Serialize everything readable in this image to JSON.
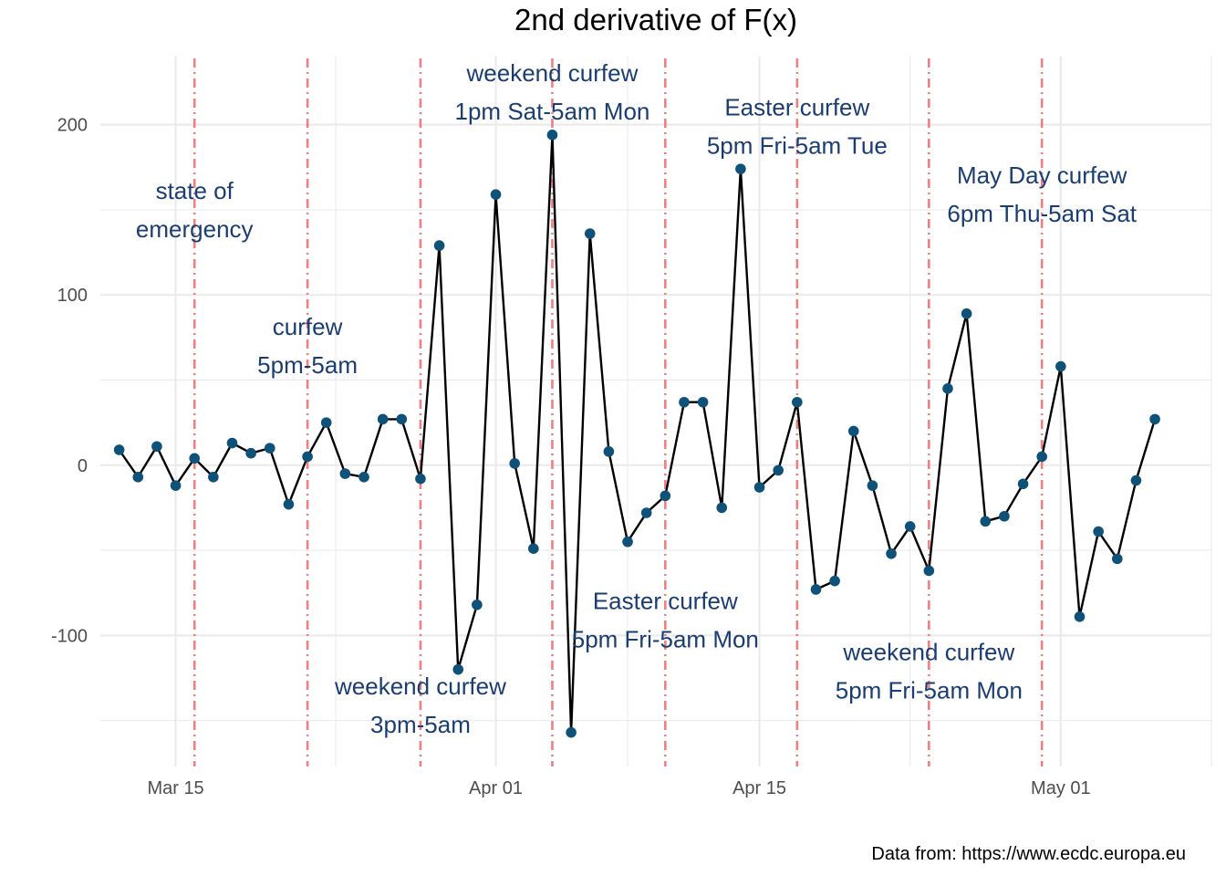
{
  "chart_data": {
    "type": "line",
    "title": "2nd derivative of F(x)",
    "xlabel": "",
    "ylabel": "",
    "caption": "Data from: https://www.ecdc.europa.eu",
    "x_range": [
      "2020-03-11",
      "2020-05-09"
    ],
    "ylim": [
      -177,
      240
    ],
    "grid": true,
    "x_ticks": [
      {
        "date": "2020-03-15",
        "label": "Mar 15"
      },
      {
        "date": "2020-04-01",
        "label": "Apr 01"
      },
      {
        "date": "2020-04-15",
        "label": "Apr 15"
      },
      {
        "date": "2020-05-01",
        "label": "May 01"
      }
    ],
    "y_ticks": [
      {
        "value": 200,
        "label": "200"
      },
      {
        "value": 100,
        "label": "100"
      },
      {
        "value": 0,
        "label": "0"
      },
      {
        "value": -100,
        "label": "-100"
      }
    ],
    "series": [
      {
        "line_color": "#000000",
        "point_color": "#0f5279",
        "points": [
          {
            "x": "2020-03-12",
            "y": 9
          },
          {
            "x": "2020-03-13",
            "y": -7
          },
          {
            "x": "2020-03-14",
            "y": 11
          },
          {
            "x": "2020-03-15",
            "y": -12
          },
          {
            "x": "2020-03-16",
            "y": 4
          },
          {
            "x": "2020-03-17",
            "y": -7
          },
          {
            "x": "2020-03-18",
            "y": 13
          },
          {
            "x": "2020-03-19",
            "y": 7
          },
          {
            "x": "2020-03-20",
            "y": 10
          },
          {
            "x": "2020-03-21",
            "y": -23
          },
          {
            "x": "2020-03-22",
            "y": 5
          },
          {
            "x": "2020-03-23",
            "y": 25
          },
          {
            "x": "2020-03-24",
            "y": -5
          },
          {
            "x": "2020-03-25",
            "y": -7
          },
          {
            "x": "2020-03-26",
            "y": 27
          },
          {
            "x": "2020-03-27",
            "y": 27
          },
          {
            "x": "2020-03-28",
            "y": -8
          },
          {
            "x": "2020-03-29",
            "y": 129
          },
          {
            "x": "2020-03-30",
            "y": -120
          },
          {
            "x": "2020-03-31",
            "y": -82
          },
          {
            "x": "2020-04-01",
            "y": 159
          },
          {
            "x": "2020-04-02",
            "y": 1
          },
          {
            "x": "2020-04-03",
            "y": -49
          },
          {
            "x": "2020-04-04",
            "y": 194
          },
          {
            "x": "2020-04-05",
            "y": -157
          },
          {
            "x": "2020-04-06",
            "y": 136
          },
          {
            "x": "2020-04-07",
            "y": 8
          },
          {
            "x": "2020-04-08",
            "y": -45
          },
          {
            "x": "2020-04-09",
            "y": -28
          },
          {
            "x": "2020-04-10",
            "y": -18
          },
          {
            "x": "2020-04-11",
            "y": 37
          },
          {
            "x": "2020-04-12",
            "y": 37
          },
          {
            "x": "2020-04-13",
            "y": -25
          },
          {
            "x": "2020-04-14",
            "y": 174
          },
          {
            "x": "2020-04-15",
            "y": -13
          },
          {
            "x": "2020-04-16",
            "y": -3
          },
          {
            "x": "2020-04-17",
            "y": 37
          },
          {
            "x": "2020-04-18",
            "y": -73
          },
          {
            "x": "2020-04-19",
            "y": -68
          },
          {
            "x": "2020-04-20",
            "y": 20
          },
          {
            "x": "2020-04-21",
            "y": -12
          },
          {
            "x": "2020-04-22",
            "y": -52
          },
          {
            "x": "2020-04-23",
            "y": -36
          },
          {
            "x": "2020-04-24",
            "y": -62
          },
          {
            "x": "2020-04-25",
            "y": 45
          },
          {
            "x": "2020-04-26",
            "y": 89
          },
          {
            "x": "2020-04-27",
            "y": -33
          },
          {
            "x": "2020-04-28",
            "y": -30
          },
          {
            "x": "2020-04-29",
            "y": -11
          },
          {
            "x": "2020-04-30",
            "y": 5
          },
          {
            "x": "2020-05-01",
            "y": 58
          },
          {
            "x": "2020-05-02",
            "y": -89
          },
          {
            "x": "2020-05-03",
            "y": -39
          },
          {
            "x": "2020-05-04",
            "y": -55
          },
          {
            "x": "2020-05-05",
            "y": -9
          },
          {
            "x": "2020-05-06",
            "y": 27
          }
        ]
      }
    ],
    "vlines": [
      {
        "x": "2020-03-16",
        "color": "#f08080"
      },
      {
        "x": "2020-03-22",
        "color": "#f08080"
      },
      {
        "x": "2020-03-28",
        "color": "#f08080"
      },
      {
        "x": "2020-04-04",
        "color": "#f08080"
      },
      {
        "x": "2020-04-10",
        "color": "#f08080"
      },
      {
        "x": "2020-04-17",
        "color": "#f08080"
      },
      {
        "x": "2020-04-24",
        "color": "#f08080"
      },
      {
        "x": "2020-04-30",
        "color": "#f08080"
      }
    ],
    "annotations": [
      {
        "x": "2020-03-16",
        "y": 150,
        "lines": [
          "state of",
          "emergency"
        ]
      },
      {
        "x": "2020-03-22",
        "y": 70,
        "lines": [
          "curfew",
          "5pm-5am"
        ]
      },
      {
        "x": "2020-03-28",
        "y": -141,
        "lines": [
          "weekend curfew",
          "3pm-5am"
        ]
      },
      {
        "x": "2020-04-04",
        "y": 219,
        "lines": [
          "weekend curfew",
          "1pm Sat-5am Mon"
        ]
      },
      {
        "x": "2020-04-10",
        "y": -91,
        "lines": [
          "Easter curfew",
          "5pm Fri-5am Mon"
        ]
      },
      {
        "x": "2020-04-17",
        "y": 199,
        "lines": [
          "Easter curfew",
          "5pm Fri-5am Tue"
        ]
      },
      {
        "x": "2020-04-24",
        "y": -121,
        "lines": [
          "weekend curfew",
          "5pm Fri-5am Mon"
        ]
      },
      {
        "x": "2020-04-30",
        "y": 159,
        "lines": [
          "May Day curfew",
          "6pm Thu-5am Sat"
        ]
      }
    ],
    "annotation_color": "#1a3d73",
    "grid_color": "#ebebeb"
  }
}
